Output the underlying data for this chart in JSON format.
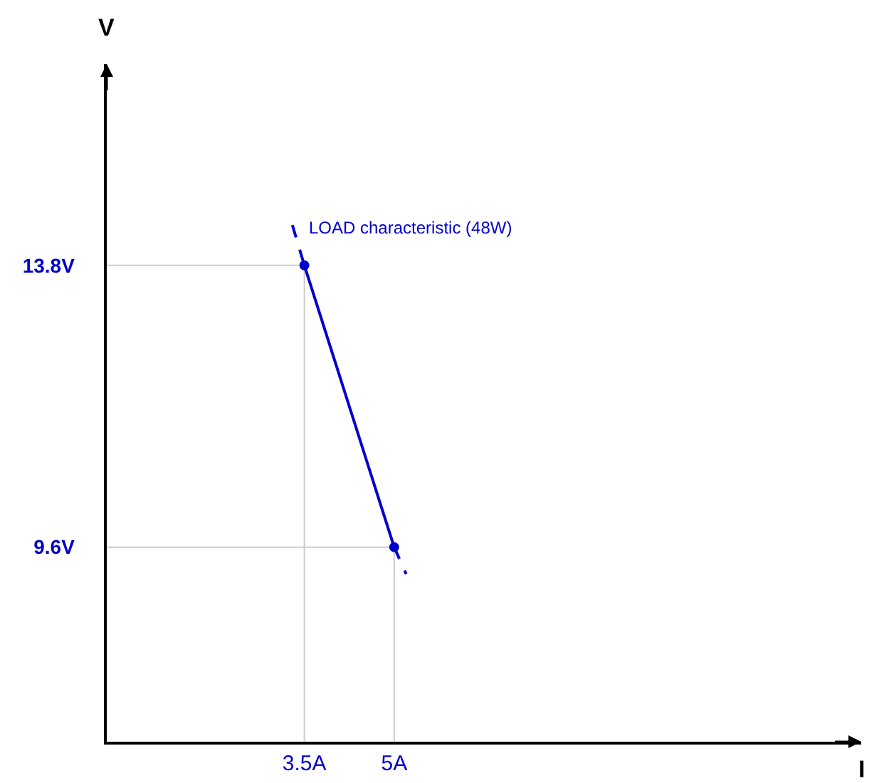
{
  "chart_data": {
    "type": "line",
    "xlabel": "I",
    "ylabel": "V",
    "xlim": [
      0.2,
      12.8
    ],
    "ylim": [
      6.7,
      16.8
    ],
    "xticks": [
      {
        "value": 3.5,
        "label": "3.5A"
      },
      {
        "value": 5,
        "label": "5A"
      }
    ],
    "yticks": [
      {
        "value": 9.6,
        "label": "9.6V"
      },
      {
        "value": 13.8,
        "label": "13.8V"
      }
    ],
    "series": [
      {
        "color": "#cccccc",
        "x": [
          0.2,
          3.5
        ],
        "values": [
          13.8,
          13.8
        ],
        "marker": "none",
        "line_style": "solid"
      },
      {
        "color": "#cccccc",
        "x": [
          0.2,
          5
        ],
        "values": [
          9.6,
          9.6
        ],
        "marker": "none",
        "line_style": "solid"
      },
      {
        "color": "#cccccc",
        "x": [
          3.5,
          3.5
        ],
        "values": [
          6.7,
          13.8
        ],
        "marker": "none",
        "line_style": "solid"
      },
      {
        "color": "#cccccc",
        "x": [
          5,
          5
        ],
        "values": [
          6.7,
          9.6
        ],
        "marker": "none",
        "line_style": "solid"
      },
      {
        "color": "#0000cc",
        "x": [
          3.5,
          5
        ],
        "values": [
          13.8,
          9.6
        ],
        "marker": "circle",
        "line_style": "solid"
      },
      {
        "color": "#0000cc",
        "x": [
          3.3,
          3.5
        ],
        "values": [
          14.4,
          13.8
        ],
        "marker": "none",
        "line_style": "dashed"
      },
      {
        "color": "#0000cc",
        "x": [
          5,
          5.2
        ],
        "values": [
          9.6,
          9.2
        ],
        "marker": "none",
        "line_style": "dashed"
      }
    ],
    "annotations": [
      "LOAD characteristic (48W)"
    ]
  }
}
